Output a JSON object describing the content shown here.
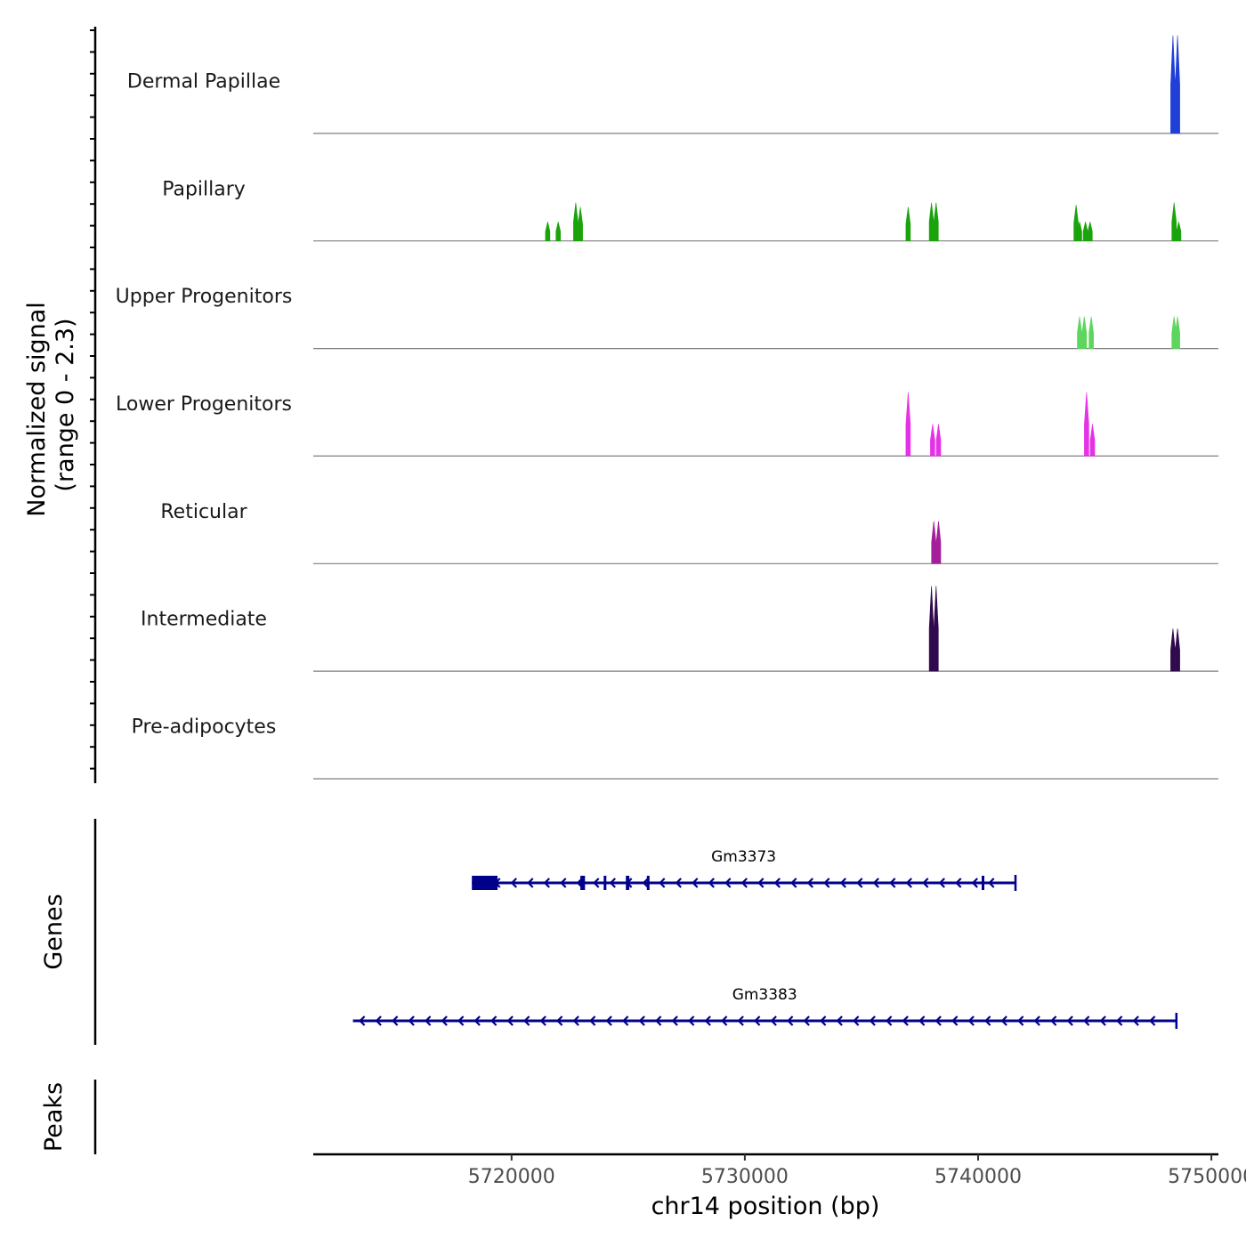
{
  "chart_data": {
    "type": "genome-track",
    "xlabel": "chr14 position (bp)",
    "xlim": [
      5711500,
      5750300
    ],
    "xticks": [
      5720000,
      5730000,
      5740000,
      5750000
    ],
    "xtick_labels": [
      "5720000",
      "5730000",
      "5740000",
      "5750000"
    ],
    "coverage": {
      "ylabel_line1": "Normalized signal",
      "ylabel_line2": "(range 0 - 2.3)",
      "ymax": 2.3,
      "tracks": [
        {
          "name": "Dermal Papillae",
          "color": "#1f3fd6",
          "peaks": [
            [
              5748350,
              2.3
            ],
            [
              5748550,
              2.3
            ]
          ]
        },
        {
          "name": "Papillary",
          "color": "#1aa30a",
          "peaks": [
            [
              5721550,
              0.45
            ],
            [
              5722000,
              0.45
            ],
            [
              5722750,
              0.9
            ],
            [
              5722950,
              0.8
            ],
            [
              5737000,
              0.8
            ],
            [
              5738000,
              0.9
            ],
            [
              5738200,
              0.9
            ],
            [
              5744200,
              0.85
            ],
            [
              5744350,
              0.45
            ],
            [
              5744600,
              0.45
            ],
            [
              5744800,
              0.45
            ],
            [
              5748400,
              0.9
            ],
            [
              5748600,
              0.45
            ]
          ]
        },
        {
          "name": "Upper Progenitors",
          "color": "#5cd65c",
          "peaks": [
            [
              5744350,
              0.75
            ],
            [
              5744550,
              0.75
            ],
            [
              5744850,
              0.75
            ],
            [
              5748400,
              0.75
            ],
            [
              5748550,
              0.75
            ]
          ]
        },
        {
          "name": "Lower Progenitors",
          "color": "#e632e6",
          "peaks": [
            [
              5737000,
              1.5
            ],
            [
              5738050,
              0.75
            ],
            [
              5738300,
              0.75
            ],
            [
              5744650,
              1.5
            ],
            [
              5744900,
              0.75
            ]
          ]
        },
        {
          "name": "Reticular",
          "color": "#a3209a",
          "peaks": [
            [
              5738100,
              1.0
            ],
            [
              5738300,
              1.0
            ]
          ]
        },
        {
          "name": "Intermediate",
          "color": "#2f0a4d",
          "peaks": [
            [
              5738000,
              2.0
            ],
            [
              5738200,
              2.0
            ],
            [
              5748350,
              1.0
            ],
            [
              5748550,
              1.0
            ]
          ]
        },
        {
          "name": "Pre-adipocytes",
          "color": "#7a1010",
          "peaks": []
        }
      ]
    },
    "genes": {
      "ylabel": "Genes",
      "color": "#00008b",
      "items": [
        {
          "name": "Gm3373",
          "start": 5718300,
          "end": 5741600,
          "exons": [
            [
              5718300,
              5719400
            ],
            [
              5722950,
              5723150
            ],
            [
              5723950,
              5724050
            ],
            [
              5724900,
              5725050
            ],
            [
              5725800,
              5725900
            ],
            [
              5740150,
              5740250
            ]
          ]
        },
        {
          "name": "Gm3383",
          "start": 5713200,
          "end": 5748500,
          "exons": []
        }
      ]
    },
    "peaks": {
      "ylabel": "Peaks",
      "items": []
    }
  }
}
